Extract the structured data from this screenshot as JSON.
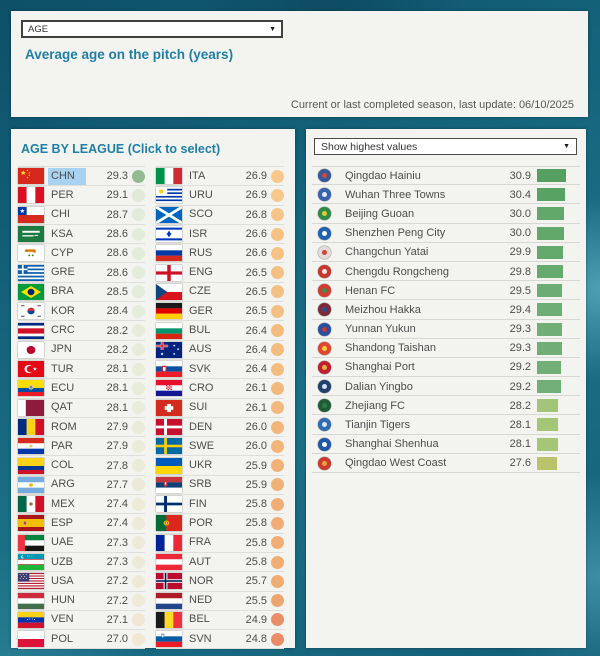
{
  "header": {
    "metric_select": {
      "value": "AGE"
    },
    "title": "Average age on the pitch (years)",
    "update_note": "Current or last completed season, last update: 06/10/2025"
  },
  "league_table": {
    "title": "AGE BY LEAGUE (Click to select)",
    "selected_code": "CHN",
    "columns": [
      [
        {
          "code": "CHN",
          "value": 29.3,
          "selected": true,
          "dot": "#92bb92"
        },
        {
          "code": "PER",
          "value": 29.1,
          "dot": "#e1eada"
        },
        {
          "code": "CHI",
          "value": 28.7,
          "dot": "#e2ebdb"
        },
        {
          "code": "KSA",
          "value": 28.6,
          "dot": "#e3ebdb"
        },
        {
          "code": "CYP",
          "value": 28.6,
          "dot": "#e3ebdb"
        },
        {
          "code": "GRE",
          "value": 28.6,
          "dot": "#e3ebdb"
        },
        {
          "code": "BRA",
          "value": 28.5,
          "dot": "#e4ecdb"
        },
        {
          "code": "KOR",
          "value": 28.4,
          "dot": "#e5ecdb"
        },
        {
          "code": "CRC",
          "value": 28.2,
          "dot": "#e7ecdc"
        },
        {
          "code": "JPN",
          "value": 28.2,
          "dot": "#e7ecdc"
        },
        {
          "code": "TUR",
          "value": 28.1,
          "dot": "#e8ecdb"
        },
        {
          "code": "ECU",
          "value": 28.1,
          "dot": "#e8ecdb"
        },
        {
          "code": "QAT",
          "value": 28.1,
          "dot": "#e8ecdb"
        },
        {
          "code": "ROM",
          "value": 27.9,
          "dot": "#eaebda"
        },
        {
          "code": "PAR",
          "value": 27.9,
          "dot": "#eaebda"
        },
        {
          "code": "COL",
          "value": 27.8,
          "dot": "#ebebda"
        },
        {
          "code": "ARG",
          "value": 27.7,
          "dot": "#ebeada"
        },
        {
          "code": "MEX",
          "value": 27.4,
          "dot": "#edead9"
        },
        {
          "code": "ESP",
          "value": 27.4,
          "dot": "#edead9"
        },
        {
          "code": "UAE",
          "value": 27.3,
          "dot": "#eeead8"
        },
        {
          "code": "UZB",
          "value": 27.3,
          "dot": "#eeead8"
        },
        {
          "code": "USA",
          "value": 27.2,
          "dot": "#efe9d7"
        },
        {
          "code": "HUN",
          "value": 27.2,
          "dot": "#efe9d7"
        },
        {
          "code": "VEN",
          "value": 27.1,
          "dot": "#f0e8d5"
        },
        {
          "code": "POL",
          "value": 27.0,
          "dot": "#f0e8d4"
        }
      ],
      [
        {
          "code": "ITA",
          "value": 26.9,
          "dot": "#f7c78b"
        },
        {
          "code": "URU",
          "value": 26.9,
          "dot": "#f7c78b"
        },
        {
          "code": "SCO",
          "value": 26.8,
          "dot": "#f6c488"
        },
        {
          "code": "ISR",
          "value": 26.6,
          "dot": "#f6c286"
        },
        {
          "code": "RUS",
          "value": 26.6,
          "dot": "#f6c286"
        },
        {
          "code": "ENG",
          "value": 26.5,
          "dot": "#f5c083"
        },
        {
          "code": "CZE",
          "value": 26.5,
          "dot": "#f5c083"
        },
        {
          "code": "GER",
          "value": 26.5,
          "dot": "#f5c083"
        },
        {
          "code": "BUL",
          "value": 26.4,
          "dot": "#f4bd80"
        },
        {
          "code": "AUS",
          "value": 26.4,
          "dot": "#f4bd80"
        },
        {
          "code": "SVK",
          "value": 26.4,
          "dot": "#f4bd80"
        },
        {
          "code": "CRO",
          "value": 26.1,
          "dot": "#f3b87c"
        },
        {
          "code": "SUI",
          "value": 26.1,
          "dot": "#f3b87c"
        },
        {
          "code": "DEN",
          "value": 26.0,
          "dot": "#f2b57a"
        },
        {
          "code": "SWE",
          "value": 26.0,
          "dot": "#f2b57a"
        },
        {
          "code": "UKR",
          "value": 25.9,
          "dot": "#f1b278"
        },
        {
          "code": "SRB",
          "value": 25.9,
          "dot": "#f1b278"
        },
        {
          "code": "FIN",
          "value": 25.8,
          "dot": "#f0ae76"
        },
        {
          "code": "POR",
          "value": 25.8,
          "dot": "#f0ae76"
        },
        {
          "code": "FRA",
          "value": 25.8,
          "dot": "#f0ae76"
        },
        {
          "code": "AUT",
          "value": 25.8,
          "dot": "#f0ae76"
        },
        {
          "code": "NOR",
          "value": 25.7,
          "dot": "#efac74"
        },
        {
          "code": "NED",
          "value": 25.5,
          "dot": "#eea671"
        },
        {
          "code": "BEL",
          "value": 24.9,
          "dot": "#ea8e68"
        },
        {
          "code": "SVN",
          "value": 24.8,
          "dot": "#e98c67"
        }
      ]
    ]
  },
  "team_list": {
    "filter_select": {
      "value": "Show highest values"
    },
    "teams": [
      {
        "name": "Qingdao Hainiu",
        "value": 30.9,
        "bar_color": "#55a061",
        "badge_colors": [
          "#39589b",
          "#d04a33"
        ]
      },
      {
        "name": "Wuhan Three Towns",
        "value": 30.4,
        "bar_color": "#58a263",
        "badge_colors": [
          "#3a62ad",
          "#e8eef6"
        ]
      },
      {
        "name": "Beijing Guoan",
        "value": 30.0,
        "bar_color": "#62a86b",
        "badge_colors": [
          "#2e8b46",
          "#e9c93c"
        ]
      },
      {
        "name": "Shenzhen Peng City",
        "value": 30.0,
        "bar_color": "#62a86b",
        "badge_colors": [
          "#1f63ae",
          "#ffffff"
        ]
      },
      {
        "name": "Changchun Yatai",
        "value": 29.9,
        "bar_color": "#64a96c",
        "badge_colors": [
          "#e2dcd8",
          "#d04434"
        ]
      },
      {
        "name": "Chengdu Rongcheng",
        "value": 29.8,
        "bar_color": "#66aa6e",
        "badge_colors": [
          "#c8372d",
          "#f0e8e2"
        ]
      },
      {
        "name": "Henan FC",
        "value": 29.5,
        "bar_color": "#6cad73",
        "badge_colors": [
          "#d23b2e",
          "#3d8f4e"
        ]
      },
      {
        "name": "Meizhou Hakka",
        "value": 29.4,
        "bar_color": "#6ead74",
        "badge_colors": [
          "#7e2a38",
          "#2b4f8e"
        ]
      },
      {
        "name": "Yunnan Yukun",
        "value": 29.3,
        "bar_color": "#70ae76",
        "badge_colors": [
          "#2b4fa0",
          "#c23b35"
        ]
      },
      {
        "name": "Shandong Taishan",
        "value": 29.3,
        "bar_color": "#70ae76",
        "badge_colors": [
          "#e0452f",
          "#f3d03e"
        ]
      },
      {
        "name": "Shanghai Port",
        "value": 29.2,
        "bar_color": "#72af77",
        "badge_colors": [
          "#c01f30",
          "#e4b53a"
        ]
      },
      {
        "name": "Dalian Yingbo",
        "value": 29.2,
        "bar_color": "#72af77",
        "badge_colors": [
          "#22406e",
          "#d9e2ee"
        ]
      },
      {
        "name": "Zhejiang FC",
        "value": 28.2,
        "bar_color": "#a2c578",
        "badge_colors": [
          "#1f5c36",
          "#2f7a48"
        ]
      },
      {
        "name": "Tianjin Tigers",
        "value": 28.1,
        "bar_color": "#a5c677",
        "badge_colors": [
          "#2f6cb4",
          "#dde8f4"
        ]
      },
      {
        "name": "Shanghai Shenhua",
        "value": 28.1,
        "bar_color": "#a5c677",
        "badge_colors": [
          "#2256a8",
          "#ffffff"
        ]
      },
      {
        "name": "Qingdao West Coast",
        "value": 27.6,
        "bar_color": "#b9c46a",
        "badge_colors": [
          "#cc3b2f",
          "#e8a23c"
        ]
      }
    ]
  },
  "colors": {
    "accent_teal_text": "#1f80a7",
    "selected_highlight": "#a9d2f1",
    "panel_background": "#f3f3f0",
    "page_background": "#14637c",
    "row_text": "#4d4d4d"
  },
  "chart_data": [
    {
      "type": "table",
      "title": "AGE BY LEAGUE (Click to select)",
      "columns": [
        "league",
        "avg_age"
      ],
      "rows": [
        [
          "CHN",
          29.3
        ],
        [
          "PER",
          29.1
        ],
        [
          "CHI",
          28.7
        ],
        [
          "KSA",
          28.6
        ],
        [
          "CYP",
          28.6
        ],
        [
          "GRE",
          28.6
        ],
        [
          "BRA",
          28.5
        ],
        [
          "KOR",
          28.4
        ],
        [
          "CRC",
          28.2
        ],
        [
          "JPN",
          28.2
        ],
        [
          "TUR",
          28.1
        ],
        [
          "ECU",
          28.1
        ],
        [
          "QAT",
          28.1
        ],
        [
          "ROM",
          27.9
        ],
        [
          "PAR",
          27.9
        ],
        [
          "COL",
          27.8
        ],
        [
          "ARG",
          27.7
        ],
        [
          "MEX",
          27.4
        ],
        [
          "ESP",
          27.4
        ],
        [
          "UAE",
          27.3
        ],
        [
          "UZB",
          27.3
        ],
        [
          "USA",
          27.2
        ],
        [
          "HUN",
          27.2
        ],
        [
          "VEN",
          27.1
        ],
        [
          "POL",
          27.0
        ],
        [
          "ITA",
          26.9
        ],
        [
          "URU",
          26.9
        ],
        [
          "SCO",
          26.8
        ],
        [
          "ISR",
          26.6
        ],
        [
          "RUS",
          26.6
        ],
        [
          "ENG",
          26.5
        ],
        [
          "CZE",
          26.5
        ],
        [
          "GER",
          26.5
        ],
        [
          "BUL",
          26.4
        ],
        [
          "AUS",
          26.4
        ],
        [
          "SVK",
          26.4
        ],
        [
          "CRO",
          26.1
        ],
        [
          "SUI",
          26.1
        ],
        [
          "DEN",
          26.0
        ],
        [
          "SWE",
          26.0
        ],
        [
          "UKR",
          25.9
        ],
        [
          "SRB",
          25.9
        ],
        [
          "FIN",
          25.8
        ],
        [
          "POR",
          25.8
        ],
        [
          "FRA",
          25.8
        ],
        [
          "AUT",
          25.8
        ],
        [
          "NOR",
          25.7
        ],
        [
          "NED",
          25.5
        ],
        [
          "BEL",
          24.9
        ],
        [
          "SVN",
          24.8
        ]
      ]
    },
    {
      "type": "bar",
      "orientation": "horizontal",
      "title": "Show highest values",
      "categories": [
        "Qingdao Hainiu",
        "Wuhan Three Towns",
        "Beijing Guoan",
        "Shenzhen Peng City",
        "Changchun Yatai",
        "Chengdu Rongcheng",
        "Henan FC",
        "Meizhou Hakka",
        "Yunnan Yukun",
        "Shandong Taishan",
        "Shanghai Port",
        "Dalian Yingbo",
        "Zhejiang FC",
        "Tianjin Tigers",
        "Shanghai Shenhua",
        "Qingdao West Coast"
      ],
      "values": [
        30.9,
        30.4,
        30.0,
        30.0,
        29.9,
        29.8,
        29.5,
        29.4,
        29.3,
        29.3,
        29.2,
        29.2,
        28.2,
        28.1,
        28.1,
        27.6
      ]
    }
  ]
}
